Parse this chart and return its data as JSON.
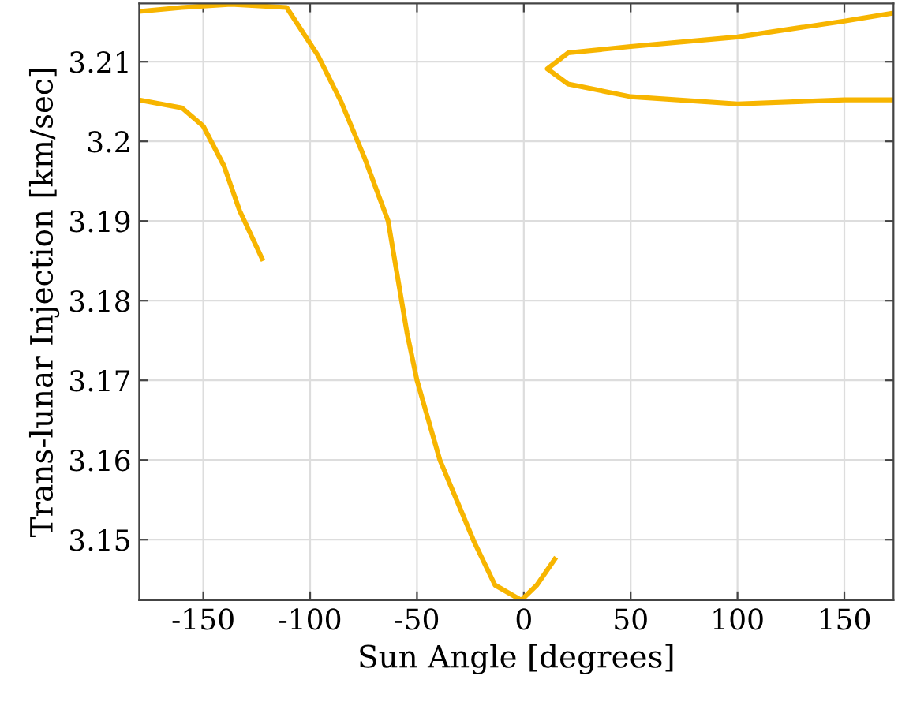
{
  "chart_data": {
    "type": "line",
    "xlabel": "Sun Angle [degrees]",
    "ylabel": "Trans-lunar Injection [km/sec]",
    "xlim": [
      -180,
      173
    ],
    "ylim": [
      3.1424,
      3.2173
    ],
    "xticks": [
      -150,
      -100,
      -50,
      0,
      50,
      100,
      150
    ],
    "yticks": [
      3.15,
      3.16,
      3.17,
      3.18,
      3.19,
      {
        "value": 3.2,
        "label": "3.2"
      },
      3.21
    ],
    "grid": true,
    "marker": "none",
    "line_style": "solid",
    "series": [
      {
        "color": "#f7b500",
        "x": [
          -180,
          -160,
          -137,
          -111,
          -96.4,
          -85.4,
          -74.5,
          -63.5,
          -54.7,
          -50,
          -39.3,
          -23.2,
          -13.5,
          -1.2,
          6.1,
          15.1
        ],
        "values": [
          3.2163,
          3.2168,
          3.2172,
          3.2168,
          3.2108,
          3.2049,
          3.1979,
          3.19,
          3.176,
          3.17,
          3.16,
          3.1497,
          3.1443,
          3.1424,
          3.1443,
          3.1478
        ]
      },
      {
        "color": "#f7b500",
        "x": [
          -180,
          -160,
          -150,
          -140.3,
          -133,
          -122
        ],
        "values": [
          3.2052,
          3.2042,
          3.2019,
          3.1969,
          3.1913,
          3.185
        ]
      },
      {
        "color": "#f7b500",
        "x": [
          173,
          150,
          100,
          50,
          20.7,
          11,
          20.7,
          50,
          100,
          150,
          173
        ],
        "values": [
          3.2161,
          3.2151,
          3.2131,
          3.2119,
          3.2111,
          3.2091,
          3.2072,
          3.2056,
          3.2047,
          3.2052,
          3.2052
        ]
      }
    ]
  }
}
